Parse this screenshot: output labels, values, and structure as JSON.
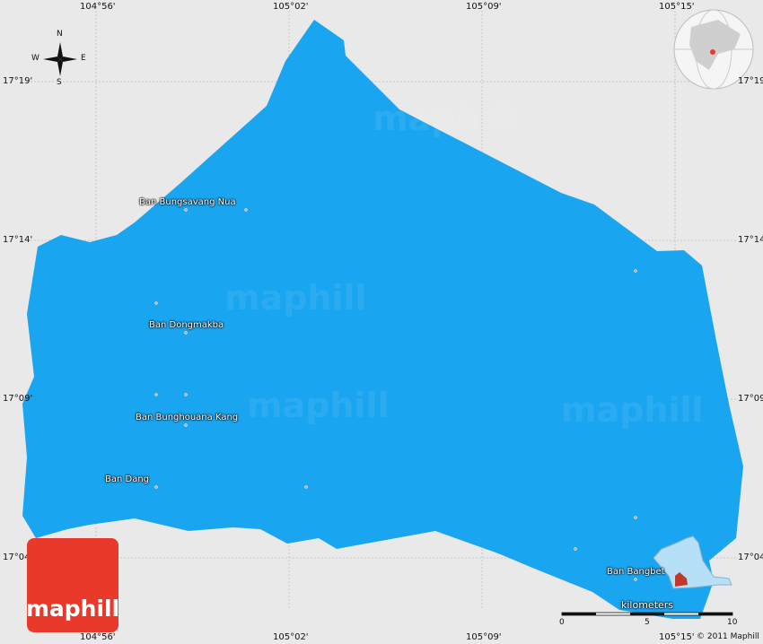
{
  "map": {
    "region_color": "#1aa5f0",
    "background_color": "#e9e9e9",
    "longitude_labels": [
      "104°56'",
      "105°02'",
      "105°09'",
      "105°15'"
    ],
    "latitude_labels": [
      "17°19'",
      "17°14'",
      "17°09'",
      "17°04'"
    ],
    "places": [
      {
        "name": "Ban Bungsavang Nua"
      },
      {
        "name": "Ban Dongmakba"
      },
      {
        "name": "Ban Bunghouana Kang"
      },
      {
        "name": "Ban Dang"
      },
      {
        "name": "Ban Bangbet"
      }
    ],
    "compass": {
      "n": "N",
      "s": "S",
      "e": "E",
      "w": "W"
    },
    "scale": {
      "unit": "kilometers",
      "ticks": [
        "0",
        "5",
        "10"
      ]
    },
    "logo": "maphill",
    "watermark": "maphill",
    "copyright": "© 2011 Maphill",
    "highlight_color": "#c0392b"
  }
}
